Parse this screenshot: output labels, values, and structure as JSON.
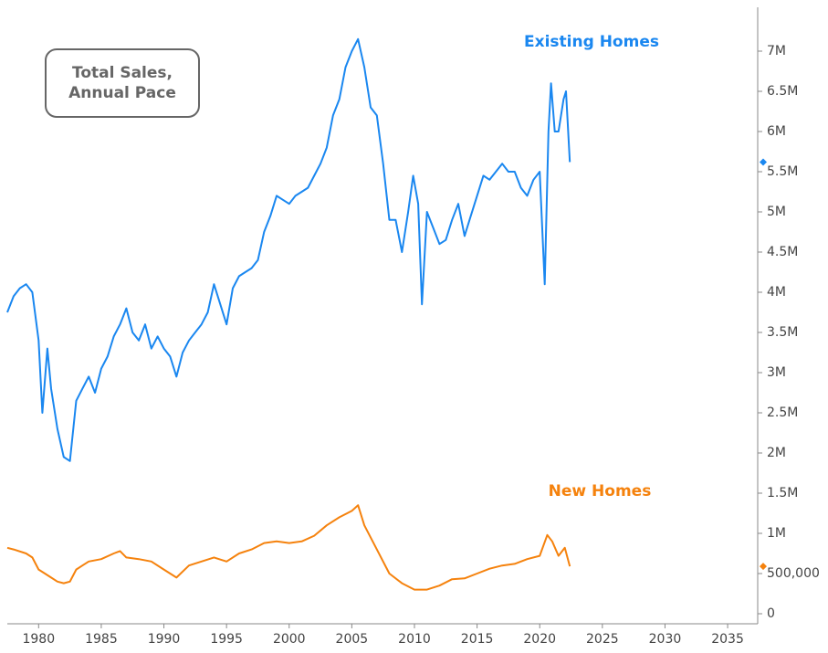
{
  "chart_data": {
    "type": "line",
    "annotation": "Total Sales,\nAnnual Pace",
    "xlim": [
      1977.5,
      2037.4
    ],
    "xticks": [
      1980,
      1985,
      1990,
      1995,
      2000,
      2005,
      2010,
      2015,
      2020,
      2025,
      2030,
      2035
    ],
    "ylim": [
      -125000,
      7500000
    ],
    "yticks": [
      0,
      {
        "value": 500000,
        "label": "500,000"
      },
      {
        "value": 1000000,
        "label": "1M"
      },
      {
        "value": 1500000,
        "label": "1.5M"
      },
      {
        "value": 2000000,
        "label": "2M"
      },
      {
        "value": 2500000,
        "label": "2.5M"
      },
      {
        "value": 3000000,
        "label": "3M"
      },
      {
        "value": 3500000,
        "label": "3.5M"
      },
      {
        "value": 4000000,
        "label": "4M"
      },
      {
        "value": 4500000,
        "label": "4.5M"
      },
      {
        "value": 5000000,
        "label": "5M"
      },
      {
        "value": 5500000,
        "label": "5.5M"
      },
      {
        "value": 6000000,
        "label": "6M"
      },
      {
        "value": 6500000,
        "label": "6.5M"
      },
      {
        "value": 7000000,
        "label": "7M"
      }
    ],
    "y_axis_side": "right",
    "grid": false,
    "series": [
      {
        "name": "Existing Homes",
        "color": "#1a87f0",
        "x": [
          1977.5,
          1978,
          1978.5,
          1979,
          1979.5,
          1980,
          1980.3,
          1980.7,
          1981,
          1981.5,
          1982,
          1982.5,
          1983,
          1983.5,
          1984,
          1984.5,
          1985,
          1985.5,
          1986,
          1986.5,
          1987,
          1987.5,
          1988,
          1988.5,
          1989,
          1989.5,
          1990,
          1990.5,
          1991,
          1991.5,
          1992,
          1992.5,
          1993,
          1993.5,
          1994,
          1994.5,
          1995,
          1995.5,
          1996,
          1996.5,
          1997,
          1997.5,
          1998,
          1998.5,
          1999,
          1999.5,
          2000,
          2000.5,
          2001,
          2001.5,
          2002,
          2002.5,
          2003,
          2003.5,
          2004,
          2004.5,
          2005,
          2005.5,
          2006,
          2006.5,
          2007,
          2007.5,
          2008,
          2008.5,
          2009,
          2009.5,
          2009.9,
          2010.3,
          2010.6,
          2011,
          2011.5,
          2012,
          2012.5,
          2013,
          2013.5,
          2014,
          2014.5,
          2015,
          2015.5,
          2016,
          2016.5,
          2017,
          2017.5,
          2018,
          2018.5,
          2019,
          2019.5,
          2020,
          2020.4,
          2020.7,
          2020.9,
          2021.2,
          2021.5,
          2021.9,
          2022.1,
          2022.4
        ],
        "values": [
          3750000,
          3950000,
          4050000,
          4100000,
          4000000,
          3400000,
          2500000,
          3300000,
          2800000,
          2300000,
          1950000,
          1900000,
          2650000,
          2800000,
          2950000,
          2750000,
          3050000,
          3200000,
          3450000,
          3600000,
          3800000,
          3500000,
          3400000,
          3600000,
          3300000,
          3450000,
          3300000,
          3200000,
          2950000,
          3250000,
          3400000,
          3500000,
          3600000,
          3750000,
          4100000,
          3850000,
          3600000,
          4050000,
          4200000,
          4250000,
          4300000,
          4400000,
          4750000,
          4950000,
          5200000,
          5150000,
          5100000,
          5200000,
          5250000,
          5300000,
          5450000,
          5600000,
          5800000,
          6200000,
          6400000,
          6800000,
          7000000,
          7150000,
          6800000,
          6300000,
          6200000,
          5600000,
          4900000,
          4900000,
          4500000,
          5000000,
          5450000,
          5100000,
          3850000,
          5000000,
          4800000,
          4600000,
          4650000,
          4900000,
          5100000,
          4700000,
          4950000,
          5200000,
          5450000,
          5400000,
          5500000,
          5600000,
          5500000,
          5500000,
          5300000,
          5200000,
          5400000,
          5500000,
          4100000,
          6000000,
          6600000,
          6000000,
          6000000,
          6400000,
          6500000,
          5620000
        ]
      },
      {
        "name": "New Homes",
        "color": "#f5820d",
        "x": [
          1977.5,
          1978,
          1979,
          1979.5,
          1980,
          1980.5,
          1981,
          1981.5,
          1982,
          1982.5,
          1983,
          1983.5,
          1984,
          1985,
          1986,
          1986.5,
          1987,
          1988,
          1989,
          1990,
          1990.5,
          1991,
          1992,
          1993,
          1994,
          1995,
          1996,
          1997,
          1998,
          1999,
          2000,
          2001,
          2002,
          2003,
          2004,
          2005,
          2005.5,
          2006,
          2007,
          2008,
          2009,
          2010,
          2011,
          2012,
          2013,
          2014,
          2015,
          2016,
          2017,
          2018,
          2019,
          2020,
          2020.6,
          2021,
          2021.5,
          2022,
          2022.4
        ],
        "values": [
          820000,
          800000,
          750000,
          700000,
          550000,
          500000,
          450000,
          400000,
          380000,
          400000,
          550000,
          600000,
          650000,
          680000,
          750000,
          780000,
          700000,
          680000,
          650000,
          550000,
          500000,
          450000,
          600000,
          650000,
          700000,
          650000,
          750000,
          800000,
          880000,
          900000,
          880000,
          900000,
          970000,
          1100000,
          1200000,
          1280000,
          1350000,
          1100000,
          800000,
          500000,
          380000,
          300000,
          300000,
          350000,
          430000,
          440000,
          500000,
          560000,
          600000,
          620000,
          680000,
          720000,
          980000,
          900000,
          720000,
          820000,
          590000
        ]
      }
    ]
  }
}
